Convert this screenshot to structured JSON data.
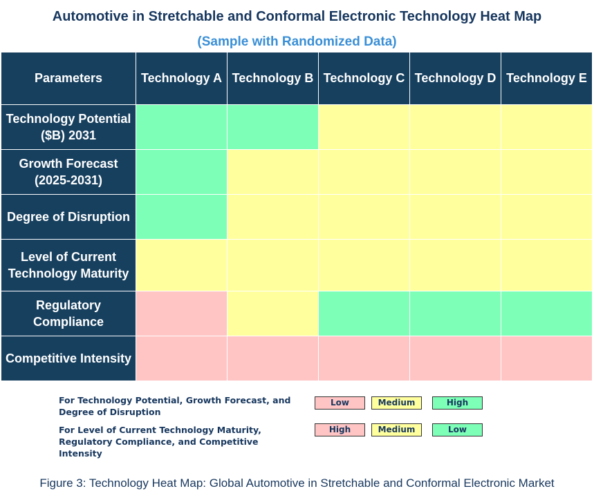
{
  "title": "Automotive in Stretchable and Conformal Electronic Technology Heat Map",
  "subtitle": "(Sample with Randomized Data)",
  "colors": {
    "Low": "#ffc4c4",
    "Medium": "#ffff9e",
    "High": "#7dffb8",
    "header": "#17405f"
  },
  "chart_data": {
    "type": "heatmap",
    "corner_label": "Parameters",
    "columns": [
      "Technology A",
      "Technology B",
      "Technology C",
      "Technology D",
      "Technology E"
    ],
    "rows": [
      {
        "label": "Technology Potential ($B) 2031",
        "values": [
          "High",
          "High",
          "Medium",
          "Medium",
          "Medium"
        ]
      },
      {
        "label": "Growth Forecast (2025-2031)",
        "values": [
          "High",
          "Medium",
          "Medium",
          "Medium",
          "Medium"
        ]
      },
      {
        "label": "Degree of Disruption",
        "values": [
          "High",
          "Medium",
          "Medium",
          "Medium",
          "Medium"
        ]
      },
      {
        "label": "Level of Current Technology Maturity",
        "values": [
          "Medium",
          "Medium",
          "Medium",
          "Medium",
          "Medium"
        ]
      },
      {
        "label": "Regulatory Compliance",
        "values": [
          "Low",
          "Medium",
          "High",
          "High",
          "High"
        ]
      },
      {
        "label": "Competitive Intensity",
        "values": [
          "Low",
          "Low",
          "Low",
          "Low",
          "Low"
        ]
      }
    ]
  },
  "legend": {
    "row1": {
      "text": "For Technology Potential, Growth Forecast, and Degree of Disruption",
      "chips": [
        "Low",
        "Medium",
        "High"
      ],
      "chip_levels": [
        "Low",
        "Medium",
        "High"
      ]
    },
    "row2": {
      "text": "For Level of Current Technology Maturity, Regulatory Compliance, and Competitive Intensity",
      "chips": [
        "High",
        "Medium",
        "Low"
      ],
      "chip_levels": [
        "Low",
        "Medium",
        "High"
      ]
    }
  },
  "caption": "Figure 3: Technology Heat Map: Global Automotive in Stretchable and Conformal Electronic Market"
}
